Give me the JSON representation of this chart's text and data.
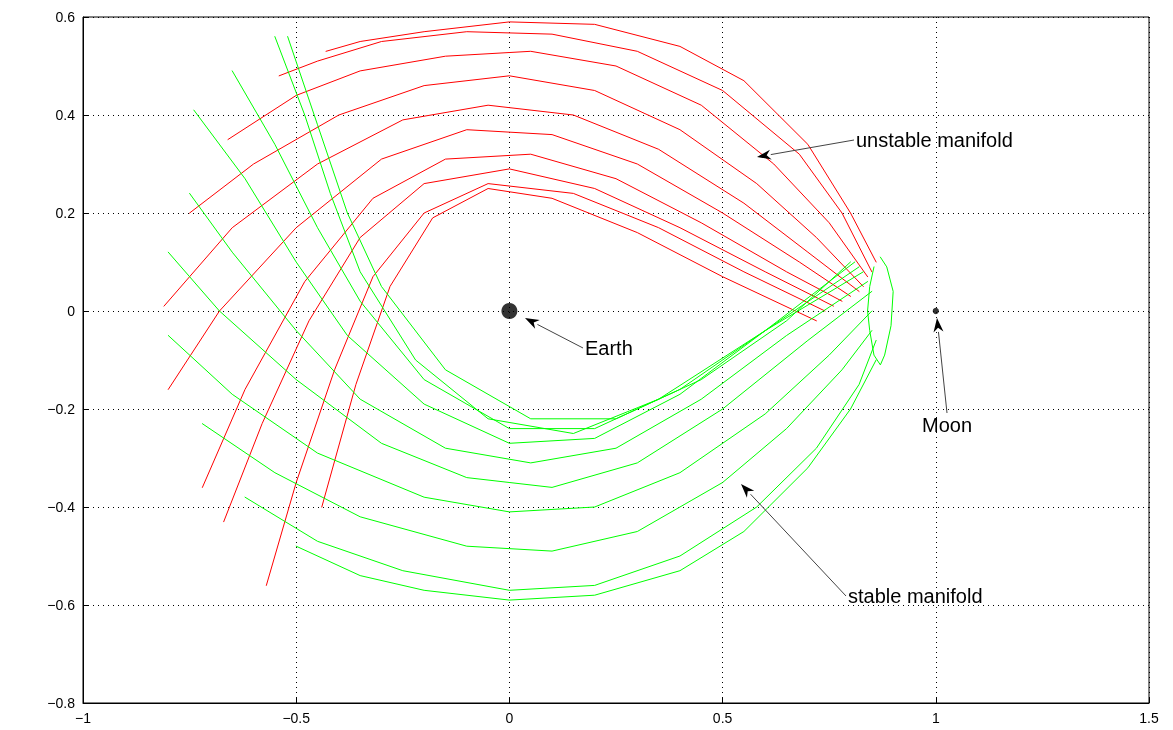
{
  "chart_data": {
    "type": "line",
    "xlim": [
      -1,
      1.5
    ],
    "xticks": [
      {
        "value": -1,
        "label": "−1"
      },
      {
        "value": -0.5,
        "label": "−0.5"
      },
      0,
      0.5,
      1,
      1.5
    ],
    "ylim": [
      -0.8,
      0.6
    ],
    "yticks": [
      {
        "value": -0.8,
        "label": "−0.8"
      },
      {
        "value": -0.6,
        "label": "−0.6"
      },
      {
        "value": -0.4,
        "label": "−0.4"
      },
      {
        "value": -0.2,
        "label": "−0.2"
      },
      0,
      0.2,
      0.4,
      0.6
    ],
    "grid": true,
    "line_style": "solid",
    "annotations": [
      "unstable manifold",
      "Earth",
      "Moon",
      "stable manifold"
    ],
    "series": [
      {
        "color": "#ff0000",
        "x": [
          0.86,
          0.8,
          0.7,
          0.55,
          0.4,
          0.2,
          0,
          -0.2,
          -0.35,
          -0.43
        ],
        "values": [
          0.1,
          0.2,
          0.34,
          0.47,
          0.54,
          0.585,
          0.59,
          0.57,
          0.55,
          0.53
        ]
      },
      {
        "color": "#ff0000",
        "x": [
          0.85,
          0.78,
          0.68,
          0.5,
          0.3,
          0.1,
          -0.1,
          -0.3,
          -0.45,
          -0.54
        ],
        "values": [
          0.08,
          0.2,
          0.32,
          0.45,
          0.53,
          0.565,
          0.57,
          0.55,
          0.51,
          0.48
        ]
      },
      {
        "color": "#ff0000",
        "x": [
          0.84,
          0.75,
          0.62,
          0.45,
          0.25,
          0.05,
          -0.15,
          -0.35,
          -0.5,
          -0.66
        ],
        "values": [
          0.07,
          0.18,
          0.3,
          0.42,
          0.5,
          0.53,
          0.52,
          0.49,
          0.44,
          0.35
        ]
      },
      {
        "color": "#ff0000",
        "x": [
          0.83,
          0.72,
          0.58,
          0.4,
          0.2,
          0,
          -0.2,
          -0.4,
          -0.6,
          -0.75
        ],
        "values": [
          0.05,
          0.15,
          0.26,
          0.37,
          0.45,
          0.48,
          0.46,
          0.4,
          0.3,
          0.2
        ]
      },
      {
        "color": "#ff0000",
        "x": [
          0.82,
          0.7,
          0.55,
          0.35,
          0.15,
          -0.05,
          -0.25,
          -0.45,
          -0.65,
          -0.81
        ],
        "values": [
          0.04,
          0.12,
          0.22,
          0.33,
          0.4,
          0.42,
          0.39,
          0.3,
          0.17,
          0.01
        ]
      },
      {
        "color": "#ff0000",
        "x": [
          0.8,
          0.68,
          0.5,
          0.3,
          0.1,
          -0.1,
          -0.3,
          -0.5,
          -0.68,
          -0.8
        ],
        "values": [
          0.03,
          0.1,
          0.2,
          0.3,
          0.36,
          0.37,
          0.31,
          0.17,
          0.0,
          -0.16
        ]
      },
      {
        "color": "#ff0000",
        "x": [
          0.78,
          0.65,
          0.45,
          0.25,
          0.05,
          -0.15,
          -0.32,
          -0.48,
          -0.62,
          -0.72
        ],
        "values": [
          0.02,
          0.08,
          0.18,
          0.27,
          0.32,
          0.31,
          0.23,
          0.06,
          -0.16,
          -0.36
        ]
      },
      {
        "color": "#ff0000",
        "x": [
          0.76,
          0.6,
          0.4,
          0.2,
          0,
          -0.2,
          -0.35,
          -0.47,
          -0.58,
          -0.67
        ],
        "values": [
          0.01,
          0.08,
          0.17,
          0.25,
          0.29,
          0.26,
          0.15,
          -0.02,
          -0.23,
          -0.43
        ]
      },
      {
        "color": "#ff0000",
        "x": [
          0.74,
          0.55,
          0.35,
          0.15,
          -0.05,
          -0.2,
          -0.32,
          -0.41,
          -0.5,
          -0.57
        ],
        "values": [
          0.0,
          0.08,
          0.17,
          0.24,
          0.26,
          0.2,
          0.07,
          -0.12,
          -0.35,
          -0.56
        ]
      },
      {
        "color": "#ff0000",
        "x": [
          0.72,
          0.5,
          0.3,
          0.1,
          -0.05,
          -0.18,
          -0.28,
          -0.36,
          -0.44
        ],
        "values": [
          -0.02,
          0.07,
          0.16,
          0.23,
          0.25,
          0.19,
          0.05,
          -0.15,
          -0.4
        ]
      },
      {
        "color": "#00ff00",
        "x": [
          -0.5,
          -0.35,
          -0.2,
          0,
          0.2,
          0.4,
          0.55,
          0.7,
          0.8,
          0.86
        ],
        "values": [
          -0.48,
          -0.54,
          -0.57,
          -0.59,
          -0.58,
          -0.53,
          -0.45,
          -0.32,
          -0.2,
          -0.1
        ]
      },
      {
        "color": "#00ff00",
        "x": [
          -0.62,
          -0.45,
          -0.25,
          0,
          0.2,
          0.4,
          0.58,
          0.72,
          0.82,
          0.86
        ],
        "values": [
          -0.38,
          -0.47,
          -0.53,
          -0.57,
          -0.56,
          -0.5,
          -0.4,
          -0.28,
          -0.15,
          -0.06
        ]
      },
      {
        "color": "#00ff00",
        "x": [
          -0.72,
          -0.55,
          -0.35,
          -0.1,
          0.1,
          0.3,
          0.5,
          0.65,
          0.78,
          0.85
        ],
        "values": [
          -0.23,
          -0.33,
          -0.42,
          -0.48,
          -0.49,
          -0.45,
          -0.35,
          -0.24,
          -0.12,
          -0.04
        ]
      },
      {
        "color": "#00ff00",
        "x": [
          -0.8,
          -0.65,
          -0.45,
          -0.2,
          0,
          0.2,
          0.4,
          0.6,
          0.75,
          0.85
        ],
        "values": [
          -0.05,
          -0.17,
          -0.29,
          -0.38,
          -0.41,
          -0.4,
          -0.33,
          -0.21,
          -0.09,
          0.0
        ]
      },
      {
        "color": "#00ff00",
        "x": [
          -0.8,
          -0.68,
          -0.5,
          -0.3,
          -0.1,
          0.1,
          0.3,
          0.5,
          0.7,
          0.85
        ],
        "values": [
          0.12,
          0.0,
          -0.14,
          -0.27,
          -0.34,
          -0.36,
          -0.31,
          -0.2,
          -0.06,
          0.04
        ]
      },
      {
        "color": "#00ff00",
        "x": [
          -0.75,
          -0.65,
          -0.5,
          -0.35,
          -0.15,
          0.05,
          0.25,
          0.45,
          0.65,
          0.84
        ],
        "values": [
          0.24,
          0.12,
          -0.04,
          -0.18,
          -0.28,
          -0.31,
          -0.28,
          -0.18,
          -0.05,
          0.06
        ]
      },
      {
        "color": "#00ff00",
        "x": [
          -0.74,
          -0.62,
          -0.5,
          -0.38,
          -0.2,
          0,
          0.2,
          0.4,
          0.6,
          0.83
        ],
        "values": [
          0.41,
          0.27,
          0.1,
          -0.05,
          -0.19,
          -0.27,
          -0.26,
          -0.17,
          -0.04,
          0.08
        ]
      },
      {
        "color": "#00ff00",
        "x": [
          -0.65,
          -0.55,
          -0.45,
          -0.35,
          -0.2,
          0,
          0.2,
          0.4,
          0.6,
          0.82
        ],
        "values": [
          0.49,
          0.34,
          0.17,
          0.02,
          -0.14,
          -0.24,
          -0.24,
          -0.16,
          -0.04,
          0.09
        ]
      },
      {
        "color": "#00ff00",
        "x": [
          -0.55,
          -0.48,
          -0.42,
          -0.35,
          -0.22,
          -0.05,
          0.15,
          0.35,
          0.6,
          0.81
        ],
        "values": [
          0.56,
          0.4,
          0.24,
          0.08,
          -0.1,
          -0.22,
          -0.25,
          -0.18,
          -0.04,
          0.1
        ]
      },
      {
        "color": "#00ff00",
        "x": [
          -0.52,
          -0.45,
          -0.38,
          -0.3,
          -0.15,
          0.05,
          0.25,
          0.45,
          0.65,
          0.8
        ],
        "values": [
          0.56,
          0.38,
          0.2,
          0.05,
          -0.12,
          -0.22,
          -0.22,
          -0.14,
          -0.02,
          0.1
        ]
      },
      {
        "color": "#00ff00",
        "x": [
          0.87,
          0.885,
          0.9,
          0.895,
          0.88,
          0.87,
          0.855,
          0.845,
          0.84,
          0.845,
          0.855
        ],
        "values": [
          0.11,
          0.09,
          0.04,
          -0.03,
          -0.09,
          -0.11,
          -0.09,
          -0.04,
          0.0,
          0.05,
          0.09
        ]
      },
      {
        "type": "bubble",
        "color": "#000000",
        "x": [
          0,
          1
        ],
        "values": [
          0,
          0
        ],
        "sizes": [
          1,
          0.15
        ]
      }
    ]
  }
}
